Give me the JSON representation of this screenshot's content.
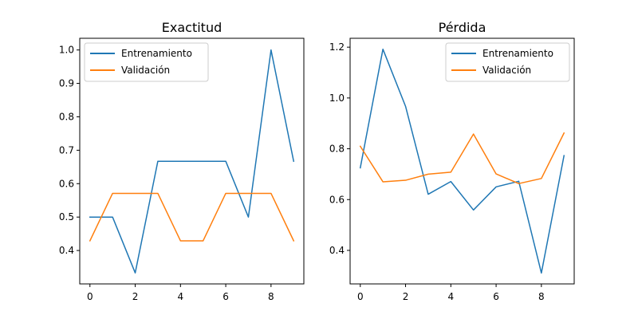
{
  "colors": {
    "series_0": "#1f77b4",
    "series_1": "#ff7f0e"
  },
  "chart_data": [
    {
      "type": "line",
      "title": "Exactitud",
      "x": [
        0,
        1,
        2,
        3,
        4,
        5,
        6,
        7,
        8,
        9
      ],
      "xticks": [
        0,
        2,
        4,
        6,
        8
      ],
      "xlim": [
        -0.45,
        9.45
      ],
      "yticks": [
        0.4,
        0.5,
        0.6,
        0.7,
        0.8,
        0.9,
        1.0
      ],
      "ytick_labels": [
        "0.4",
        "0.5",
        "0.6",
        "0.7",
        "0.8",
        "0.9",
        "1.0"
      ],
      "ylim": [
        0.3,
        1.035
      ],
      "legend_position": "upper-left",
      "series": [
        {
          "name": "Entrenamiento",
          "values": [
            0.5,
            0.5,
            0.333,
            0.667,
            0.667,
            0.667,
            0.667,
            0.5,
            1.0,
            0.667
          ]
        },
        {
          "name": "Validación",
          "values": [
            0.429,
            0.571,
            0.571,
            0.571,
            0.429,
            0.429,
            0.571,
            0.571,
            0.571,
            0.429
          ]
        }
      ]
    },
    {
      "type": "line",
      "title": "Pérdida",
      "x": [
        0,
        1,
        2,
        3,
        4,
        5,
        6,
        7,
        8,
        9
      ],
      "xticks": [
        0,
        2,
        4,
        6,
        8
      ],
      "xlim": [
        -0.45,
        9.45
      ],
      "yticks": [
        0.4,
        0.6,
        0.8,
        1.0,
        1.2
      ],
      "ytick_labels": [
        "0.4",
        "0.6",
        "0.8",
        "1.0",
        "1.2"
      ],
      "ylim": [
        0.268,
        1.235
      ],
      "legend_position": "upper-right",
      "series": [
        {
          "name": "Entrenamiento",
          "values": [
            0.725,
            1.192,
            0.967,
            0.621,
            0.671,
            0.559,
            0.65,
            0.672,
            0.311,
            0.773
          ]
        },
        {
          "name": "Validación",
          "values": [
            0.81,
            0.67,
            0.676,
            0.7,
            0.708,
            0.858,
            0.701,
            0.663,
            0.683,
            0.862
          ]
        }
      ]
    }
  ]
}
